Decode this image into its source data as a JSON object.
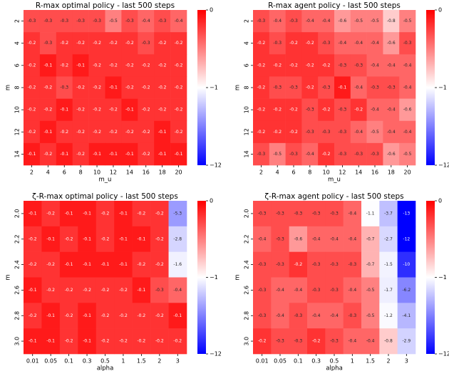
{
  "chart_data": [
    {
      "type": "heatmap",
      "title": "R-max optimal policy - last 500 steps",
      "xlabel": "m_u",
      "ylabel": "m",
      "x_categories": [
        "2",
        "4",
        "6",
        "8",
        "10",
        "12",
        "14",
        "16",
        "18",
        "20"
      ],
      "y_categories": [
        "2",
        "4",
        "6",
        "8",
        "10",
        "12",
        "14"
      ],
      "values": [
        [
          -0.3,
          -0.3,
          -0.3,
          -0.3,
          -0.3,
          -0.5,
          -0.3,
          -0.4,
          -0.3,
          -0.4
        ],
        [
          -0.2,
          -0.3,
          -0.2,
          -0.2,
          -0.2,
          -0.2,
          -0.2,
          -0.3,
          -0.2,
          -0.2
        ],
        [
          -0.2,
          -0.1,
          -0.2,
          -0.1,
          -0.2,
          -0.2,
          -0.2,
          -0.2,
          -0.2,
          -0.2
        ],
        [
          -0.2,
          -0.2,
          -0.3,
          -0.2,
          -0.2,
          -0.1,
          -0.2,
          -0.2,
          -0.2,
          -0.2
        ],
        [
          -0.2,
          -0.2,
          -0.1,
          -0.2,
          -0.2,
          -0.2,
          -0.1,
          -0.2,
          -0.2,
          -0.2
        ],
        [
          -0.2,
          -0.1,
          -0.2,
          -0.2,
          -0.2,
          -0.2,
          -0.2,
          -0.2,
          -0.1,
          -0.2
        ],
        [
          -0.1,
          -0.2,
          -0.1,
          -0.2,
          -0.1,
          -0.1,
          -0.1,
          -0.2,
          -0.1,
          -0.1
        ]
      ],
      "clim": [
        -12,
        0
      ],
      "cticks": [
        0,
        {
          "value": -1,
          "label": "−1"
        },
        {
          "value": -12,
          "label": "−12"
        }
      ],
      "cmap": "bwr"
    },
    {
      "type": "heatmap",
      "title": "R-max agent policy - last 500 steps",
      "xlabel": "m_u",
      "ylabel": "m",
      "x_categories": [
        "2",
        "4",
        "6",
        "8",
        "10",
        "12",
        "14",
        "16",
        "18",
        "20"
      ],
      "y_categories": [
        "2",
        "4",
        "6",
        "8",
        "10",
        "12",
        "14"
      ],
      "values": [
        [
          -0.3,
          -0.4,
          -0.3,
          -0.4,
          -0.4,
          -0.6,
          -0.5,
          -0.5,
          -0.8,
          -0.5
        ],
        [
          -0.2,
          -0.3,
          -0.2,
          -0.2,
          -0.3,
          -0.4,
          -0.4,
          -0.4,
          -0.6,
          -0.3
        ],
        [
          -0.2,
          -0.2,
          -0.2,
          -0.2,
          -0.2,
          -0.3,
          -0.3,
          -0.4,
          -0.4,
          -0.4
        ],
        [
          -0.2,
          -0.3,
          -0.3,
          -0.2,
          -0.3,
          -0.1,
          -0.4,
          -0.3,
          -0.3,
          -0.4
        ],
        [
          -0.2,
          -0.2,
          -0.2,
          -0.3,
          -0.2,
          -0.3,
          -0.2,
          -0.4,
          -0.4,
          -0.6
        ],
        [
          -0.2,
          -0.2,
          -0.2,
          -0.3,
          -0.3,
          -0.3,
          -0.4,
          -0.5,
          -0.4,
          -0.4
        ],
        [
          -0.3,
          -0.5,
          -0.3,
          -0.4,
          -0.2,
          -0.3,
          -0.3,
          -0.3,
          -0.6,
          -0.5
        ]
      ],
      "clim": [
        -12,
        0
      ],
      "cticks": [
        0,
        {
          "value": -1,
          "label": "−1"
        },
        {
          "value": -12,
          "label": "−12"
        }
      ],
      "cmap": "bwr"
    },
    {
      "type": "heatmap",
      "title": "ζ-R-max optimal policy - last 500 steps",
      "xlabel": "alpha",
      "ylabel": "m",
      "x_categories": [
        "0.01",
        "0.05",
        "0.1",
        "0.3",
        "0.5",
        "1",
        "1.5",
        "2",
        "3"
      ],
      "y_categories": [
        "2.0",
        "2.2",
        "2.4",
        "2.6",
        "2.8",
        "3.0"
      ],
      "values": [
        [
          -0.1,
          -0.2,
          -0.1,
          -0.1,
          -0.2,
          -0.1,
          -0.2,
          -0.2,
          -5.3
        ],
        [
          -0.2,
          -0.1,
          -0.2,
          -0.1,
          -0.2,
          -0.1,
          -0.1,
          -0.2,
          -2.8
        ],
        [
          -0.2,
          -0.2,
          -0.1,
          -0.1,
          -0.1,
          -0.1,
          -0.2,
          -0.2,
          -1.6
        ],
        [
          -0.1,
          -0.2,
          -0.2,
          -0.2,
          -0.2,
          -0.2,
          -0.1,
          -0.3,
          -0.4
        ],
        [
          -0.2,
          -0.1,
          -0.2,
          -0.1,
          -0.2,
          -0.2,
          -0.2,
          -0.2,
          -0.1
        ],
        [
          -0.1,
          -0.1,
          -0.2,
          -0.1,
          -0.2,
          -0.2,
          -0.2,
          -0.2,
          -0.2
        ]
      ],
      "clim": [
        -12,
        0
      ],
      "cticks": [
        0,
        {
          "value": -1,
          "label": "−1"
        },
        {
          "value": -12,
          "label": "−12"
        }
      ],
      "cmap": "bwr"
    },
    {
      "type": "heatmap",
      "title": "ζ-R-max agent policy - last 500 steps",
      "xlabel": "alpha",
      "ylabel": "m",
      "x_categories": [
        "0.01",
        "0.05",
        "0.1",
        "0.3",
        "0.5",
        "1",
        "1.5",
        "2",
        "3"
      ],
      "y_categories": [
        "2.0",
        "2.2",
        "2.4",
        "2.6",
        "2.8",
        "3.0"
      ],
      "values": [
        [
          -0.3,
          -0.3,
          -0.3,
          -0.3,
          -0.3,
          -0.4,
          -1.1,
          -3.7,
          -13
        ],
        [
          -0.4,
          -0.3,
          -0.6,
          -0.4,
          -0.4,
          -0.4,
          -0.7,
          -2.7,
          -12
        ],
        [
          -0.3,
          -0.3,
          -0.2,
          -0.3,
          -0.3,
          -0.3,
          -0.7,
          -1.5,
          -10
        ],
        [
          -0.3,
          -0.4,
          -0.4,
          -0.3,
          -0.3,
          -0.4,
          -0.5,
          -1.7,
          -6.2
        ],
        [
          -0.3,
          -0.4,
          -0.3,
          -0.4,
          -0.4,
          -0.3,
          -0.5,
          -1.2,
          -4.1
        ],
        [
          -0.2,
          -0.3,
          -0.3,
          -0.2,
          -0.3,
          -0.4,
          -0.4,
          -0.8,
          -2.9
        ]
      ],
      "clim": [
        -12,
        0
      ],
      "cticks": [
        0,
        {
          "value": -1,
          "label": "−1"
        },
        {
          "value": -12,
          "label": "−12"
        }
      ],
      "cmap": "bwr"
    }
  ]
}
